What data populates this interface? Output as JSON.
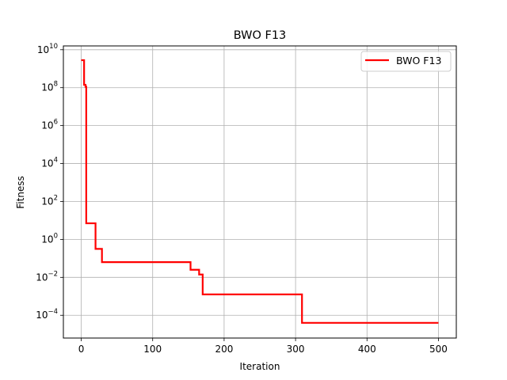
{
  "chart_data": {
    "type": "line",
    "title": "BWO F13",
    "xlabel": "Iteration",
    "ylabel": "Fitness",
    "xscale": "linear",
    "yscale": "log",
    "xlim": [
      -25,
      525
    ],
    "ylim_log10": [
      -5.2,
      10.2
    ],
    "xticks": [
      0,
      100,
      200,
      300,
      400,
      500
    ],
    "yticks_exp": [
      -4,
      -2,
      0,
      2,
      4,
      6,
      8,
      10
    ],
    "grid": true,
    "legend": {
      "position": "top-right",
      "entries": [
        "BWO F13"
      ]
    },
    "series": [
      {
        "name": "BWO F13",
        "color": "#ff0000",
        "x": [
          0,
          4,
          4,
          6,
          6,
          7,
          7,
          20,
          20,
          29,
          29,
          31,
          31,
          153,
          153,
          165,
          165,
          170,
          170,
          309,
          309,
          500
        ],
        "y_exp": [
          9.45,
          9.45,
          8.15,
          8.15,
          8.05,
          8.05,
          0.85,
          0.85,
          -0.5,
          -0.5,
          -1.2,
          -1.2,
          -1.2,
          -1.2,
          -1.6,
          -1.6,
          -1.85,
          -1.85,
          -2.9,
          -2.9,
          -4.4,
          -4.4
        ]
      }
    ]
  }
}
